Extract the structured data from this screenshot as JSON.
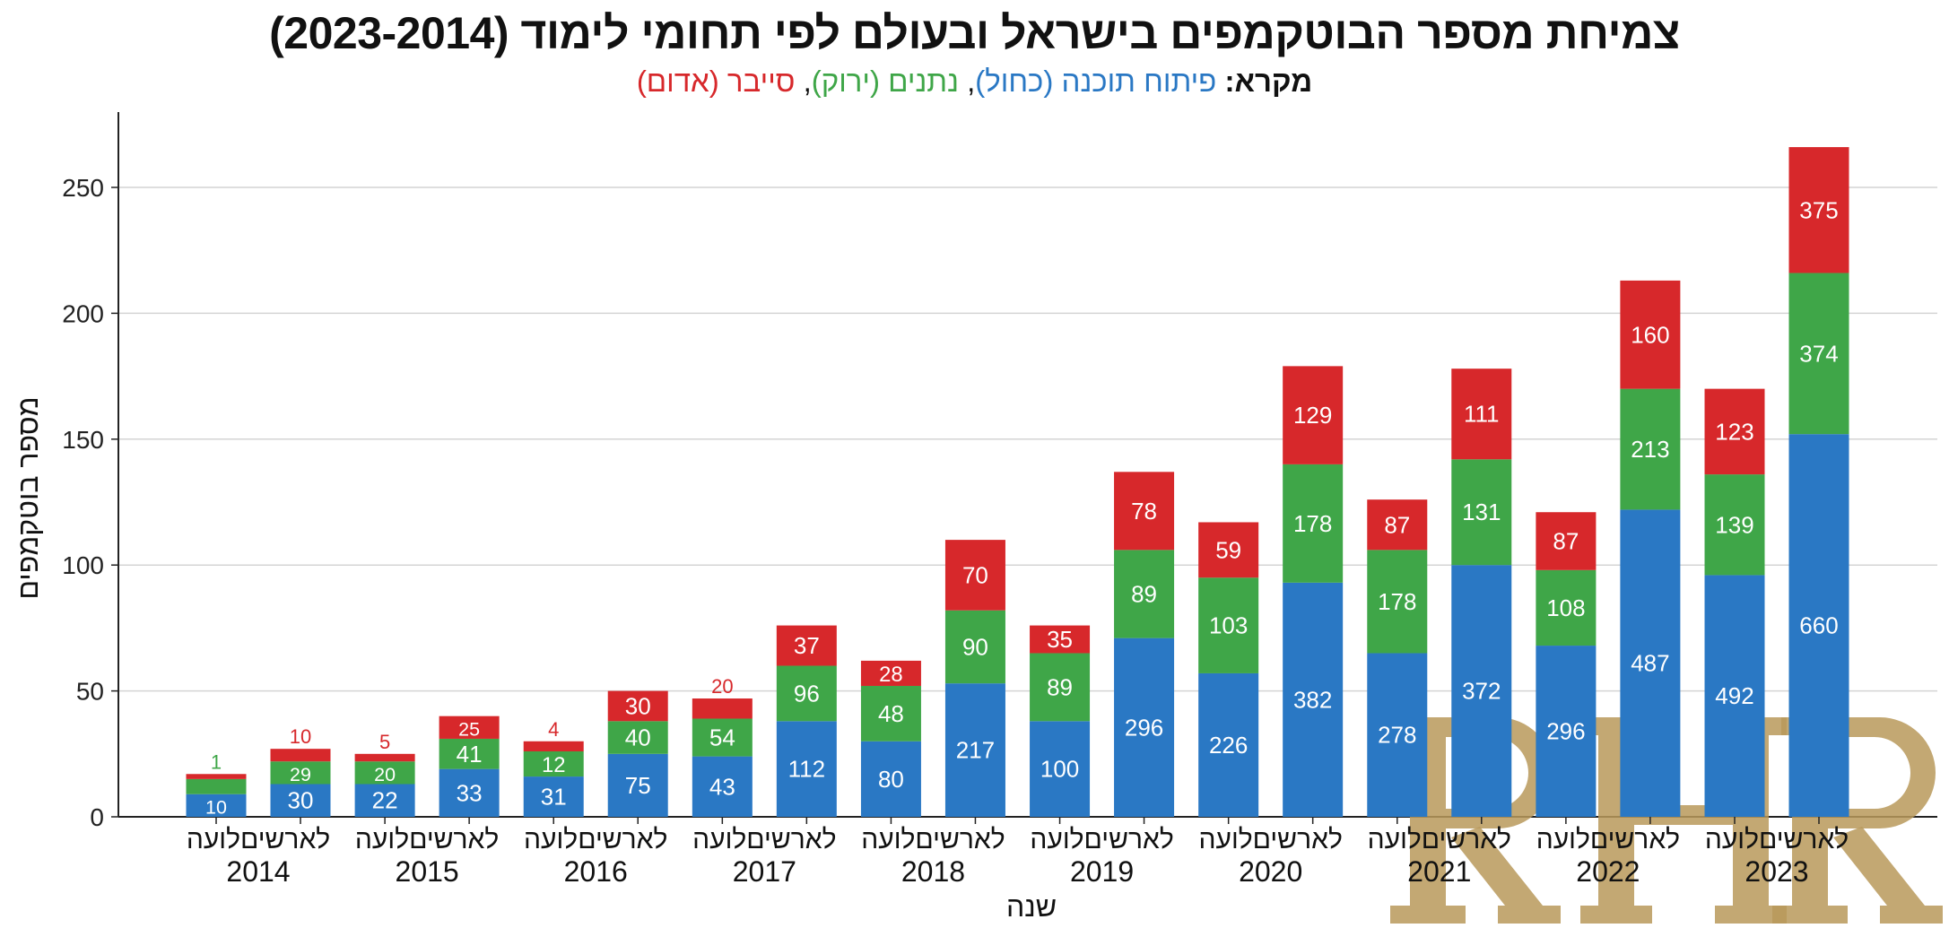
{
  "chart_data": {
    "type": "bar",
    "stacked": true,
    "title": "צמיחת מספר הבוטקמפים בישראל ובעולם לפי תחומי לימוד (2023-2014)",
    "legend": {
      "prefix": "מקרא:",
      "entries": [
        {
          "text": "פיתוח תוכנה (כחול)",
          "color": "#2a78c4"
        },
        {
          "text": "נתנים (ירוק)",
          "color": "#3fa648"
        },
        {
          "text": "סייבר (אדום)",
          "color": "#d7282b"
        }
      ],
      "separator": ", ",
      "placement": "top-center"
    },
    "xlabel": "שנה",
    "ylabel": "מספר בוטקמפים",
    "ylim": [
      0,
      280
    ],
    "yticks": [
      0,
      50,
      100,
      150,
      200,
      250
    ],
    "grid": "horizontal",
    "categories": [
      "2014",
      "2015",
      "2016",
      "2017",
      "2018",
      "2019",
      "2020",
      "2021",
      "2022",
      "2023"
    ],
    "bar_labels": [
      "העולם",
      "ישראל"
    ],
    "series_colors": [
      "#2a78c4",
      "#3fa648",
      "#d7282b"
    ],
    "groups": [
      {
        "year": "2014",
        "bars": [
          {
            "heights": [
              9,
              6,
              2
            ],
            "labels": [
              "10",
              "1",
              ""
            ]
          },
          {
            "heights": [
              13,
              9,
              5
            ],
            "labels": [
              "30",
              "29",
              "10"
            ]
          }
        ]
      },
      {
        "year": "2015",
        "bars": [
          {
            "heights": [
              13,
              9,
              3
            ],
            "labels": [
              "22",
              "20",
              "5"
            ]
          },
          {
            "heights": [
              19,
              12,
              9
            ],
            "labels": [
              "33",
              "41",
              "25"
            ]
          }
        ]
      },
      {
        "year": "2016",
        "bars": [
          {
            "heights": [
              16,
              10,
              4
            ],
            "labels": [
              "31",
              "12",
              "4"
            ]
          },
          {
            "heights": [
              25,
              13,
              12
            ],
            "labels": [
              "75",
              "40",
              "30"
            ]
          }
        ]
      },
      {
        "year": "2017",
        "bars": [
          {
            "heights": [
              24,
              15,
              8
            ],
            "labels": [
              "43",
              "54",
              "20"
            ]
          },
          {
            "heights": [
              38,
              22,
              16
            ],
            "labels": [
              "112",
              "96",
              "37"
            ]
          }
        ]
      },
      {
        "year": "2018",
        "bars": [
          {
            "heights": [
              30,
              22,
              10
            ],
            "labels": [
              "80",
              "48",
              "28"
            ]
          },
          {
            "heights": [
              53,
              29,
              28
            ],
            "labels": [
              "217",
              "90",
              "70"
            ]
          }
        ]
      },
      {
        "year": "2019",
        "bars": [
          {
            "heights": [
              38,
              27,
              11
            ],
            "labels": [
              "100",
              "89",
              "35"
            ]
          },
          {
            "heights": [
              71,
              35,
              31
            ],
            "labels": [
              "296",
              "89",
              "78"
            ]
          }
        ]
      },
      {
        "year": "2020",
        "bars": [
          {
            "heights": [
              57,
              38,
              22
            ],
            "labels": [
              "226",
              "103",
              "59"
            ]
          },
          {
            "heights": [
              93,
              47,
              39
            ],
            "labels": [
              "382",
              "178",
              "129"
            ]
          }
        ]
      },
      {
        "year": "2021",
        "bars": [
          {
            "heights": [
              65,
              41,
              20
            ],
            "labels": [
              "278",
              "178",
              "87"
            ]
          },
          {
            "heights": [
              100,
              42,
              36
            ],
            "labels": [
              "372",
              "131",
              "111"
            ]
          }
        ]
      },
      {
        "year": "2022",
        "bars": [
          {
            "heights": [
              68,
              30,
              23
            ],
            "labels": [
              "296",
              "108",
              "87"
            ]
          },
          {
            "heights": [
              122,
              48,
              43
            ],
            "labels": [
              "487",
              "213",
              "160"
            ]
          }
        ]
      },
      {
        "year": "2023",
        "bars": [
          {
            "heights": [
              96,
              40,
              34
            ],
            "labels": [
              "492",
              "139",
              "123"
            ]
          },
          {
            "heights": [
              152,
              64,
              50
            ],
            "labels": [
              "660",
              "374",
              "375"
            ]
          }
        ]
      }
    ]
  },
  "watermark": "RHR"
}
